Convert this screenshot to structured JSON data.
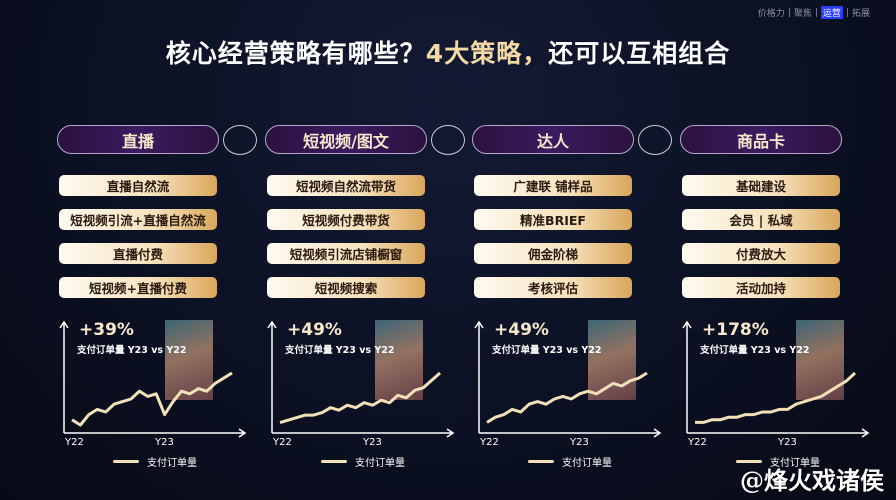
{
  "nav": {
    "items": [
      "价格力",
      "聚焦",
      "运营",
      "拓展"
    ],
    "active": 2
  },
  "title": {
    "main": "核心经营策略有哪些？",
    "highlight": "4大策略，",
    "rest": "还可以互相组合"
  },
  "columns": [
    {
      "header": "直播",
      "items": [
        "直播自然流",
        "短视频引流+直播自然流",
        "直播付费",
        "短视频+直播付费"
      ],
      "pct": "+39%",
      "sub": "支付订单量 Y23 vs Y22"
    },
    {
      "header": "短视频/图文",
      "items": [
        "短视频自然流带货",
        "短视频付费带货",
        "短视频引流店铺橱窗",
        "短视频搜索"
      ],
      "pct": "+49%",
      "sub": "支付订单量 Y23 vs Y22"
    },
    {
      "header": "达人",
      "items": [
        "广建联 铺样品",
        "精准BRIEF",
        "佣金阶梯",
        "考核评估"
      ],
      "pct": "+49%",
      "sub": "支付订单量 Y23 vs Y22"
    },
    {
      "header": "商品卡",
      "items": [
        "基础建设",
        "会员 | 私域",
        "付费放大",
        "活动加持"
      ],
      "pct": "+178%",
      "sub": "支付订单量 Y23 vs Y22"
    }
  ],
  "chart_data": [
    {
      "type": "line",
      "x_ticks": [
        "Y22",
        "Y23"
      ],
      "legend": "支付订单量",
      "series": [
        {
          "name": "支付订单量",
          "values": [
            2,
            0,
            4,
            6,
            5,
            8,
            9,
            10,
            13,
            11,
            12,
            4,
            9,
            13,
            12,
            14,
            13,
            16,
            18,
            20
          ]
        }
      ]
    },
    {
      "type": "line",
      "x_ticks": [
        "Y22",
        "Y23"
      ],
      "legend": "支付订单量",
      "series": [
        {
          "name": "支付订单量",
          "values": [
            1,
            2,
            3,
            4,
            4,
            5,
            7,
            6,
            8,
            7,
            9,
            8,
            10,
            9,
            12,
            11,
            14,
            15,
            18,
            21
          ]
        }
      ]
    },
    {
      "type": "line",
      "x_ticks": [
        "Y22",
        "Y23"
      ],
      "legend": "支付订单量",
      "series": [
        {
          "name": "支付订单量",
          "values": [
            1,
            3,
            4,
            6,
            5,
            8,
            9,
            8,
            10,
            11,
            10,
            12,
            13,
            12,
            14,
            16,
            15,
            17,
            18,
            20
          ]
        }
      ]
    },
    {
      "type": "line",
      "x_ticks": [
        "Y22",
        "Y23"
      ],
      "legend": "支付订单量",
      "series": [
        {
          "name": "支付订单量",
          "values": [
            1,
            1,
            2,
            2,
            3,
            3,
            4,
            4,
            5,
            5,
            6,
            6,
            8,
            9,
            10,
            11,
            13,
            15,
            17,
            20
          ]
        }
      ]
    }
  ],
  "watermark": "@烽火戏诸侯",
  "colors": {
    "accent": "#f3d9a6",
    "line": "#f2e1b8",
    "nav_active": "#2a3cff"
  }
}
